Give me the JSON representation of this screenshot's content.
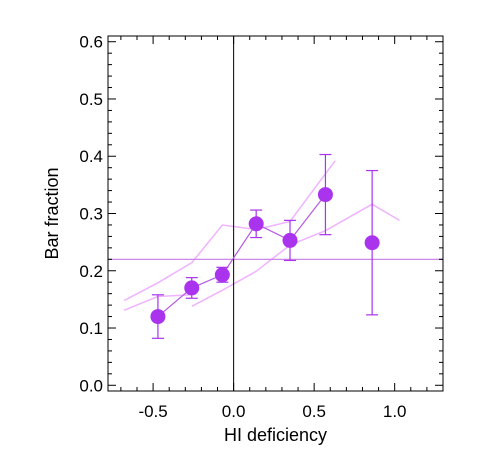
{
  "chart_data": {
    "type": "scatter",
    "xlabel": "HI deficiency",
    "ylabel": "Bar fraction",
    "xlim": [
      -0.78,
      1.3
    ],
    "ylim": [
      -0.01,
      0.61
    ],
    "x_ticks": [
      -0.5,
      0.0,
      0.5,
      1.0
    ],
    "x_tick_labels": [
      "-0.5",
      "0.0",
      "0.5",
      "1.0"
    ],
    "y_ticks": [
      0.0,
      0.1,
      0.2,
      0.3,
      0.4,
      0.5,
      0.6
    ],
    "y_tick_labels": [
      "0.0",
      "0.1",
      "0.2",
      "0.3",
      "0.4",
      "0.5",
      "0.6"
    ],
    "grid": false,
    "colors": {
      "points": "#aa33ee",
      "connector": "#b55ae6",
      "bands": "#efb3ff",
      "reference": "#c77ae6",
      "axis": "#000000"
    },
    "series": [
      {
        "points": [
          {
            "x": -0.47,
            "y": 0.12,
            "ylow": 0.082,
            "yhigh": 0.158
          },
          {
            "x": -0.26,
            "y": 0.17,
            "ylow": 0.152,
            "yhigh": 0.188
          },
          {
            "x": -0.07,
            "y": 0.193,
            "ylow": 0.18,
            "yhigh": 0.206
          },
          {
            "x": 0.14,
            "y": 0.282,
            "ylow": 0.258,
            "yhigh": 0.306
          },
          {
            "x": 0.35,
            "y": 0.253,
            "ylow": 0.218,
            "yhigh": 0.288
          },
          {
            "x": 0.57,
            "y": 0.333,
            "ylow": 0.263,
            "yhigh": 0.403
          },
          {
            "x": 0.86,
            "y": 0.249,
            "ylow": 0.123,
            "yhigh": 0.375
          }
        ]
      }
    ],
    "bands": [
      {
        "x": [
          -0.68,
          -0.47,
          -0.26,
          -0.07,
          0.14,
          0.35,
          0.63
        ],
        "y": [
          0.148,
          0.179,
          0.214,
          0.28,
          0.272,
          0.286,
          0.392
        ]
      },
      {
        "x": [
          -0.26,
          -0.07,
          0.14,
          0.35,
          0.57,
          0.86,
          1.03
        ],
        "y": [
          0.138,
          0.166,
          0.199,
          0.245,
          0.27,
          0.316,
          0.288
        ]
      },
      {
        "x": [
          -0.68,
          -0.47,
          -0.26
        ],
        "y": [
          0.131,
          0.155,
          0.158
        ]
      }
    ],
    "reference_lines": {
      "horizontal_y": 0.22,
      "vertical_x": 0.0
    }
  }
}
